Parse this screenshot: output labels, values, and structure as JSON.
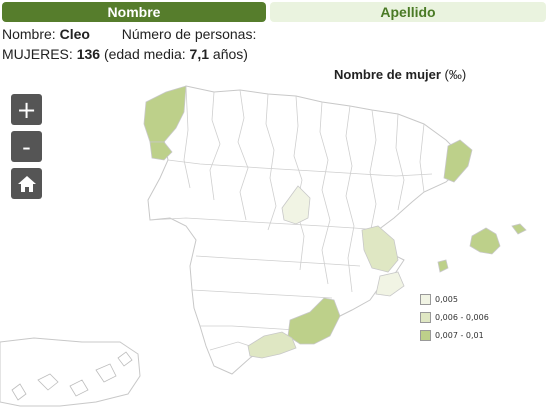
{
  "tabs": {
    "nombre": "Nombre",
    "apellido": "Apellido"
  },
  "info": {
    "name_label": "Nombre:",
    "name_value": "Cleo",
    "count_label": "Número de personas:",
    "women_label": "MUJERES:",
    "women_count": "136",
    "age_prefix": "(edad media:",
    "age_value": "7,1",
    "age_suffix": "años)"
  },
  "map": {
    "title": "Nombre de mujer",
    "unit": "(‰)",
    "legend": [
      {
        "label": "0,005",
        "color": "#f1f4e4"
      },
      {
        "label": "0,006 - 0,006",
        "color": "#dfe7c3"
      },
      {
        "label": "0,007 - 0,01",
        "color": "#bdd08a"
      }
    ]
  },
  "controls": {
    "zoom_in_icon": "plus-icon",
    "zoom_out_icon": "minus-icon",
    "home_icon": "home-icon"
  }
}
